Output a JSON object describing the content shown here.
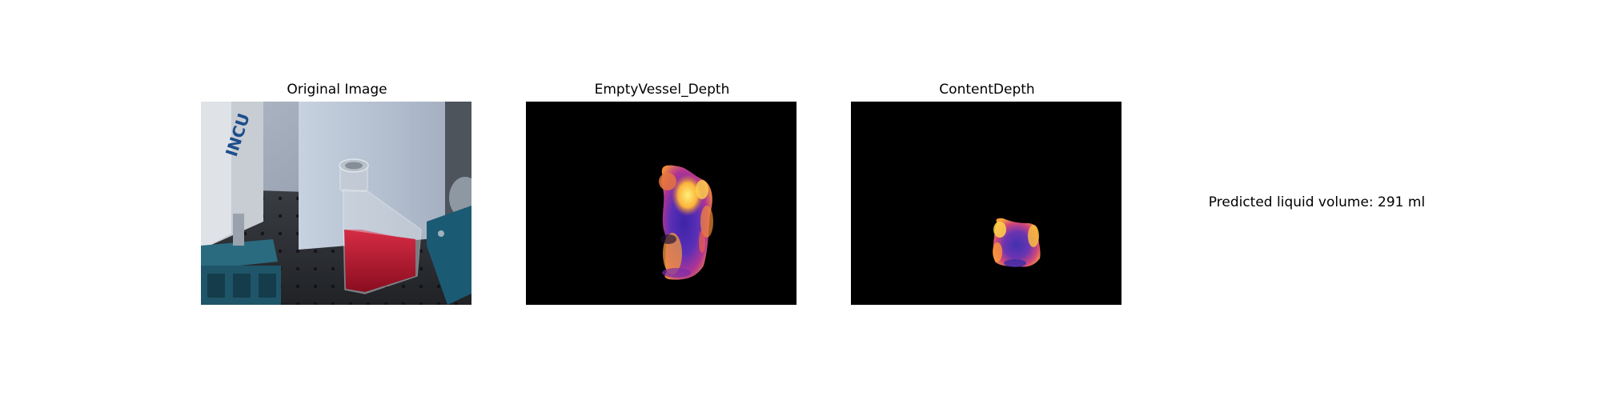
{
  "panels": [
    {
      "title": "Original Image"
    },
    {
      "title": "EmptyVessel_Depth"
    },
    {
      "title": "ContentDepth"
    }
  ],
  "prediction": {
    "text": "Predicted liquid volume: 291 ml"
  },
  "photo_text": {
    "sign_partial": "INCU"
  },
  "colors": {
    "background": "#ffffff",
    "depth_background": "#000000",
    "depth_low": "#4a2fb8",
    "depth_mid": "#c03a8a",
    "depth_high": "#ffd23a",
    "liquid": "#b3122a"
  },
  "colormap": "plasma"
}
